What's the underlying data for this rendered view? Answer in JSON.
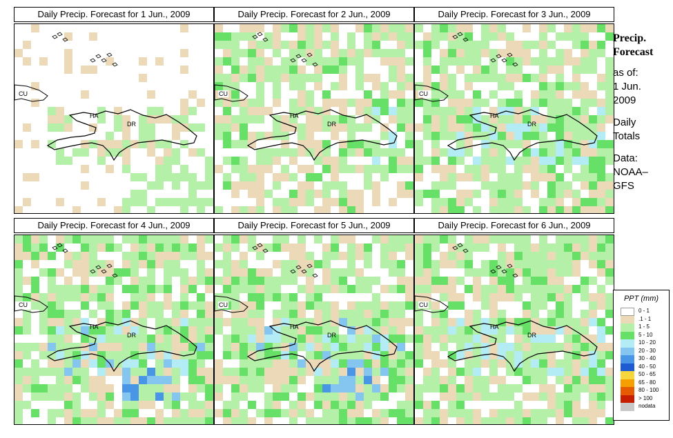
{
  "panels": [
    {
      "title": "Daily Precip. Forecast for  1 Jun., 2009",
      "level": 0
    },
    {
      "title": "Daily Precip. Forecast for  2 Jun., 2009",
      "level": 1
    },
    {
      "title": "Daily Precip. Forecast for  3 Jun., 2009",
      "level": 2
    },
    {
      "title": "Daily Precip. Forecast for  4 Jun., 2009",
      "level": 3
    },
    {
      "title": "Daily Precip. Forecast for  5 Jun., 2009",
      "level": 3
    },
    {
      "title": "Daily Precip. Forecast for  6 Jun., 2009",
      "level": 2
    }
  ],
  "map_labels": {
    "cu": "CU",
    "ha": "HA",
    "dr": "DR"
  },
  "side": {
    "title1": "Precip.",
    "title2": "Forecast",
    "asof": "as of:",
    "date1": "1 Jun.",
    "date2": "2009",
    "totals1": "Daily",
    "totals2": "Totals",
    "data1": "Data:",
    "data2": "NOAA–",
    "data3": "GFS"
  },
  "legend": {
    "title": "PPT (mm)",
    "items": [
      {
        "label": "0 - 1",
        "color": "#ffffff"
      },
      {
        "label": ".1 - 1",
        "color": "#ecd9b8"
      },
      {
        "label": "1 - 5",
        "color": "#b5f0a8"
      },
      {
        "label": "5 - 10",
        "color": "#66e066"
      },
      {
        "label": "10 - 20",
        "color": "#b4ecf5"
      },
      {
        "label": "20 - 30",
        "color": "#84c6f0"
      },
      {
        "label": "30 - 40",
        "color": "#4a96e6"
      },
      {
        "label": "40 - 50",
        "color": "#1e5ad2"
      },
      {
        "label": "50 - 65",
        "color": "#f5d63c"
      },
      {
        "label": "65 - 80",
        "color": "#f5a000"
      },
      {
        "label": "80 - 100",
        "color": "#e65a00"
      },
      {
        "label": "> 100",
        "color": "#c81e00"
      },
      {
        "label": "nodata",
        "color": "#c8c8c8"
      }
    ]
  }
}
